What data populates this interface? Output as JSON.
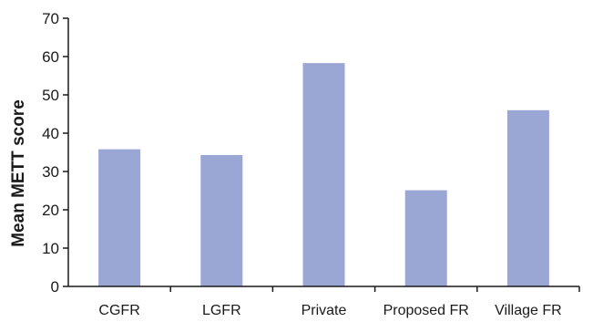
{
  "chart_data": {
    "type": "bar",
    "title": "",
    "xlabel": "",
    "ylabel": "Mean METT score",
    "ylim": [
      0,
      70
    ],
    "yticks": [
      0,
      10,
      20,
      30,
      40,
      50,
      60,
      70
    ],
    "categories": [
      "CGFR",
      "LGFR",
      "Private",
      "Proposed FR",
      "Village FR"
    ],
    "values": [
      35.8,
      34.3,
      58.3,
      25.1,
      46.0
    ],
    "grid": false,
    "legend": "none",
    "colors": {
      "bar": "#9aa6d4",
      "axis": "#1a1a1a",
      "text": "#1a1a1a"
    }
  }
}
